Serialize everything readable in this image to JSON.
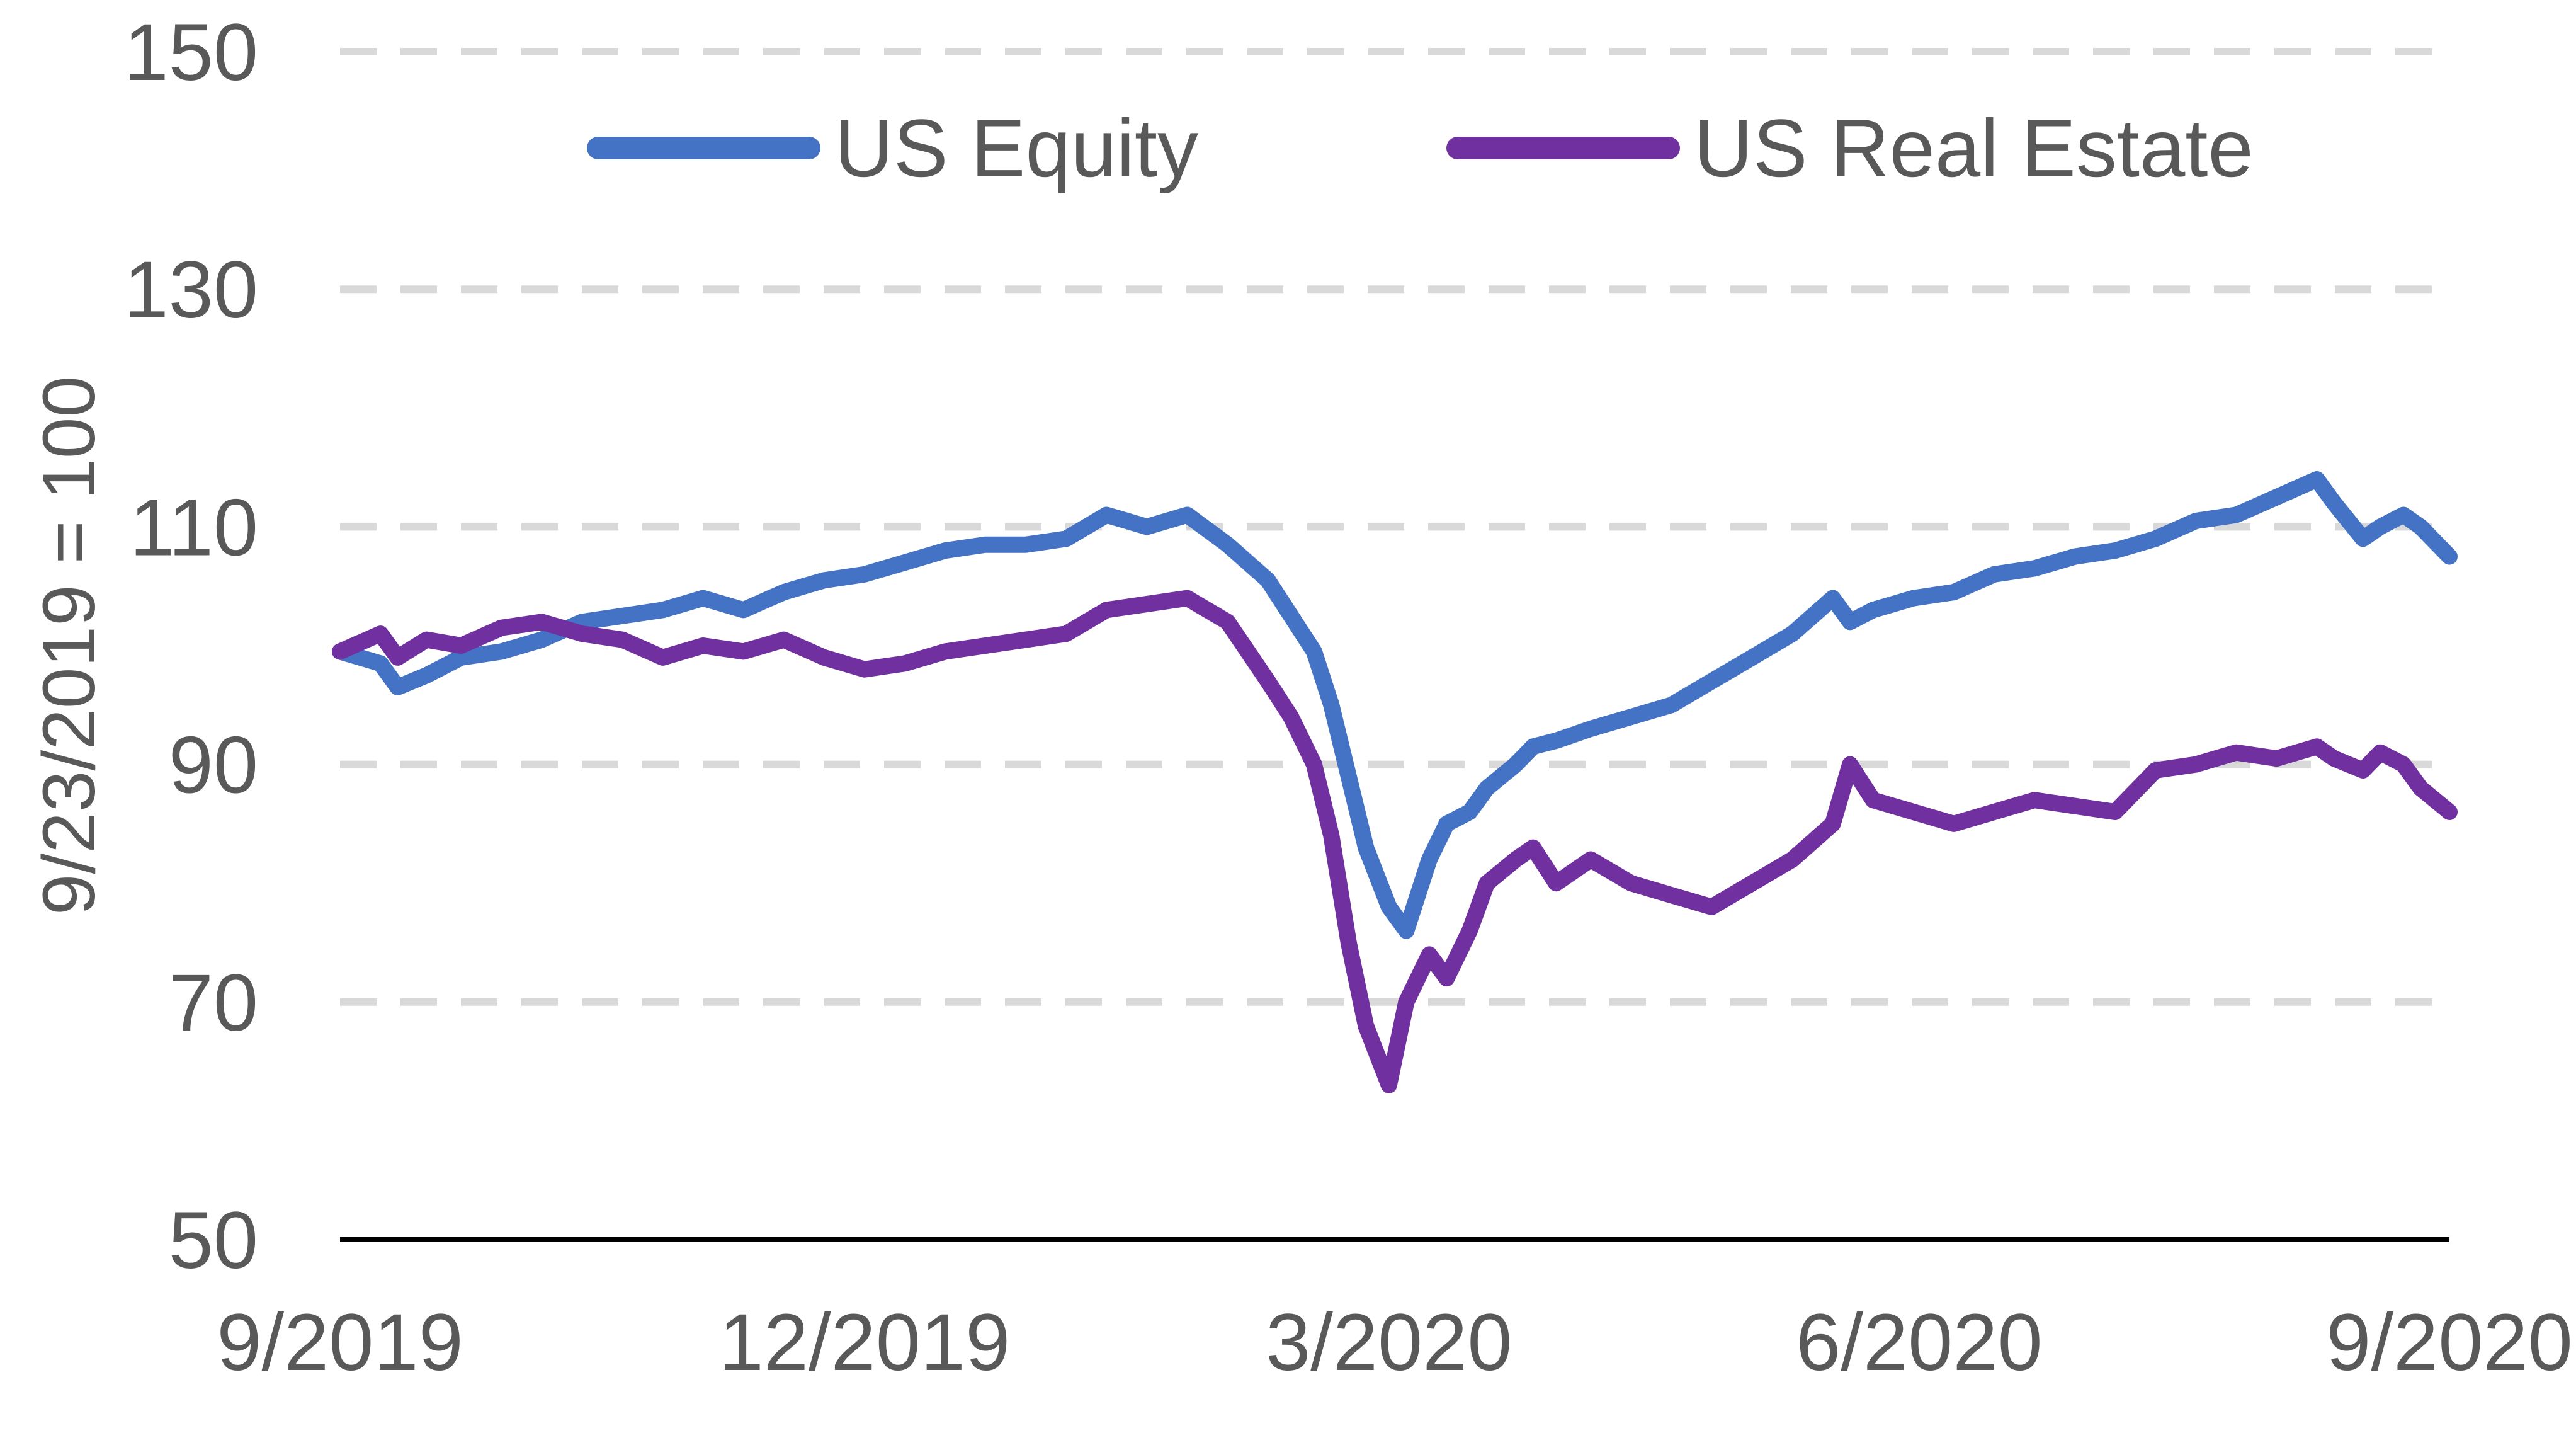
{
  "chart_data": {
    "type": "line",
    "title": "",
    "xlabel": "",
    "ylabel": "9/23/2019 = 100",
    "ylim": [
      50,
      150
    ],
    "yticks": [
      "50",
      "70",
      "90",
      "110",
      "130",
      "150"
    ],
    "xlim": [
      "2019-09-23",
      "2020-09-23"
    ],
    "xticks": [
      {
        "date": "2019-09-23",
        "label": "9/2019"
      },
      {
        "date": "2019-12-23",
        "label": "12/2019"
      },
      {
        "date": "2020-03-23",
        "label": "3/2020"
      },
      {
        "date": "2020-06-23",
        "label": "6/2020"
      },
      {
        "date": "2020-09-23",
        "label": "9/2020"
      }
    ],
    "grid": "horizontal dashed",
    "legend_position": "top",
    "series": [
      {
        "name": "US Equity",
        "color": "#4472C4",
        "points": [
          [
            "2019-09-23",
            99.5
          ],
          [
            "2019-09-30",
            98.5
          ],
          [
            "2019-10-03",
            96.5
          ],
          [
            "2019-10-08",
            97.5
          ],
          [
            "2019-10-14",
            99
          ],
          [
            "2019-10-21",
            99.5
          ],
          [
            "2019-10-28",
            100.5
          ],
          [
            "2019-11-04",
            102
          ],
          [
            "2019-11-11",
            102.5
          ],
          [
            "2019-11-18",
            103
          ],
          [
            "2019-11-25",
            104
          ],
          [
            "2019-12-02",
            103
          ],
          [
            "2019-12-09",
            104.5
          ],
          [
            "2019-12-16",
            105.5
          ],
          [
            "2019-12-23",
            106
          ],
          [
            "2019-12-30",
            107
          ],
          [
            "2020-01-06",
            108
          ],
          [
            "2020-01-13",
            108.5
          ],
          [
            "2020-01-20",
            108.5
          ],
          [
            "2020-01-27",
            109
          ],
          [
            "2020-02-03",
            111
          ],
          [
            "2020-02-10",
            110
          ],
          [
            "2020-02-17",
            111
          ],
          [
            "2020-02-24",
            108.5
          ],
          [
            "2020-03-02",
            105.5
          ],
          [
            "2020-03-06",
            102.5
          ],
          [
            "2020-03-10",
            99.5
          ],
          [
            "2020-03-13",
            95
          ],
          [
            "2020-03-16",
            89
          ],
          [
            "2020-03-19",
            83
          ],
          [
            "2020-03-23",
            78
          ],
          [
            "2020-03-26",
            76
          ],
          [
            "2020-03-30",
            82
          ],
          [
            "2020-04-02",
            85
          ],
          [
            "2020-04-06",
            86
          ],
          [
            "2020-04-09",
            88
          ],
          [
            "2020-04-14",
            90
          ],
          [
            "2020-04-17",
            91.5
          ],
          [
            "2020-04-21",
            92
          ],
          [
            "2020-04-27",
            93
          ],
          [
            "2020-05-04",
            94
          ],
          [
            "2020-05-11",
            95
          ],
          [
            "2020-05-18",
            97
          ],
          [
            "2020-05-25",
            99
          ],
          [
            "2020-06-01",
            101
          ],
          [
            "2020-06-08",
            104
          ],
          [
            "2020-06-11",
            102
          ],
          [
            "2020-06-15",
            103
          ],
          [
            "2020-06-22",
            104
          ],
          [
            "2020-06-29",
            104.5
          ],
          [
            "2020-07-06",
            106
          ],
          [
            "2020-07-13",
            106.5
          ],
          [
            "2020-07-20",
            107.5
          ],
          [
            "2020-07-27",
            108
          ],
          [
            "2020-08-03",
            109
          ],
          [
            "2020-08-10",
            110.5
          ],
          [
            "2020-08-17",
            111
          ],
          [
            "2020-08-24",
            112.5
          ],
          [
            "2020-08-31",
            114
          ],
          [
            "2020-09-03",
            112
          ],
          [
            "2020-09-08",
            109
          ],
          [
            "2020-09-11",
            110
          ],
          [
            "2020-09-15",
            111
          ],
          [
            "2020-09-18",
            110
          ],
          [
            "2020-09-23",
            107.5
          ]
        ]
      },
      {
        "name": "US Real Estate",
        "color": "#7030A0",
        "points": [
          [
            "2019-09-23",
            99.5
          ],
          [
            "2019-09-30",
            101
          ],
          [
            "2019-10-03",
            99
          ],
          [
            "2019-10-08",
            100.5
          ],
          [
            "2019-10-14",
            100
          ],
          [
            "2019-10-21",
            101.5
          ],
          [
            "2019-10-28",
            102
          ],
          [
            "2019-11-04",
            101
          ],
          [
            "2019-11-11",
            100.5
          ],
          [
            "2019-11-18",
            99
          ],
          [
            "2019-11-25",
            100
          ],
          [
            "2019-12-02",
            99.5
          ],
          [
            "2019-12-09",
            100.5
          ],
          [
            "2019-12-16",
            99
          ],
          [
            "2019-12-23",
            98
          ],
          [
            "2019-12-30",
            98.5
          ],
          [
            "2020-01-06",
            99.5
          ],
          [
            "2020-01-13",
            100
          ],
          [
            "2020-01-20",
            100.5
          ],
          [
            "2020-01-27",
            101
          ],
          [
            "2020-02-03",
            103
          ],
          [
            "2020-02-10",
            103.5
          ],
          [
            "2020-02-17",
            104
          ],
          [
            "2020-02-24",
            102
          ],
          [
            "2020-03-02",
            97
          ],
          [
            "2020-03-06",
            94
          ],
          [
            "2020-03-10",
            90
          ],
          [
            "2020-03-13",
            84
          ],
          [
            "2020-03-16",
            75
          ],
          [
            "2020-03-19",
            68
          ],
          [
            "2020-03-23",
            63
          ],
          [
            "2020-03-26",
            70
          ],
          [
            "2020-03-30",
            74
          ],
          [
            "2020-04-02",
            72
          ],
          [
            "2020-04-06",
            76
          ],
          [
            "2020-04-09",
            80
          ],
          [
            "2020-04-14",
            82
          ],
          [
            "2020-04-17",
            83
          ],
          [
            "2020-04-21",
            80
          ],
          [
            "2020-04-27",
            82
          ],
          [
            "2020-05-04",
            80
          ],
          [
            "2020-05-11",
            79
          ],
          [
            "2020-05-18",
            78
          ],
          [
            "2020-05-25",
            80
          ],
          [
            "2020-06-01",
            82
          ],
          [
            "2020-06-08",
            85
          ],
          [
            "2020-06-11",
            90
          ],
          [
            "2020-06-15",
            87
          ],
          [
            "2020-06-22",
            86
          ],
          [
            "2020-06-29",
            85
          ],
          [
            "2020-07-06",
            86
          ],
          [
            "2020-07-13",
            87
          ],
          [
            "2020-07-20",
            86.5
          ],
          [
            "2020-07-27",
            86
          ],
          [
            "2020-08-03",
            89.5
          ],
          [
            "2020-08-10",
            90
          ],
          [
            "2020-08-17",
            91
          ],
          [
            "2020-08-24",
            90.5
          ],
          [
            "2020-08-31",
            91.5
          ],
          [
            "2020-09-03",
            90.5
          ],
          [
            "2020-09-08",
            89.5
          ],
          [
            "2020-09-11",
            91
          ],
          [
            "2020-09-15",
            90
          ],
          [
            "2020-09-18",
            88
          ],
          [
            "2020-09-23",
            86
          ]
        ]
      }
    ]
  }
}
